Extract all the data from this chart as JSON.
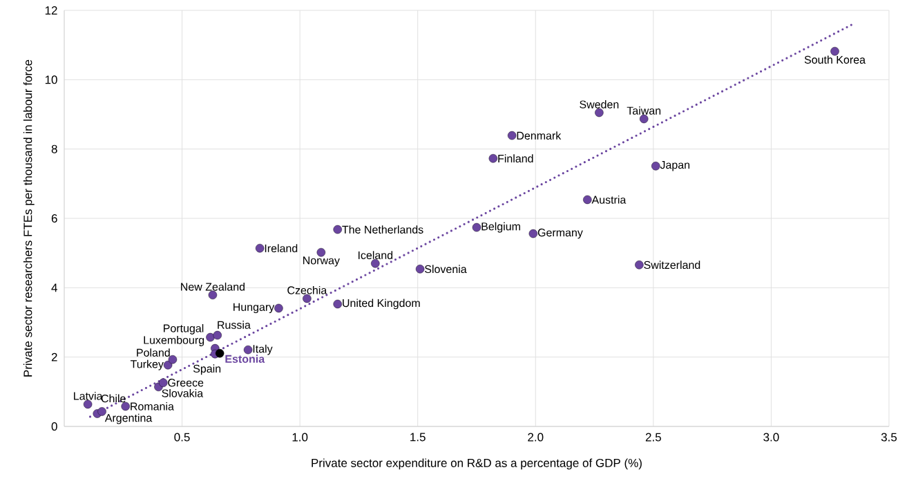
{
  "chart_data": {
    "type": "scatter",
    "xlabel": "Private sector expenditure on R&D as a percentage of GDP (%)",
    "ylabel": "Private sector researchers FTEs per thousand in labour force",
    "xlim": [
      0,
      3.5
    ],
    "ylim": [
      0,
      12
    ],
    "xticks": [
      {
        "value": 0.5,
        "label": "0.5"
      },
      {
        "value": 1,
        "label": "1.0"
      },
      {
        "value": 1.5,
        "label": "1.5"
      },
      {
        "value": 2,
        "label": "2.0"
      },
      {
        "value": 2.5,
        "label": "2.5"
      },
      {
        "value": 3,
        "label": "3.0"
      },
      {
        "value": 3.5,
        "label": "3.5"
      }
    ],
    "yticks": [
      0,
      2,
      4,
      6,
      8,
      10,
      12
    ],
    "grid": true,
    "series": [
      {
        "type": "scatter",
        "marker": "circle",
        "color": "#6b46a0",
        "x": [
          0.1,
          0.14,
          0.16,
          0.26,
          0.4,
          0.42,
          0.44,
          0.46,
          0.62,
          0.65,
          0.64,
          0.64,
          0.66,
          0.78,
          0.91,
          0.63,
          1.03,
          1.16,
          0.83,
          1.09,
          1.16,
          1.32,
          1.51,
          1.75,
          1.99,
          2.22,
          1.82,
          1.9,
          2.27,
          2.46,
          2.51,
          2.44,
          3.27
        ],
        "values": [
          0.64,
          0.37,
          0.43,
          0.58,
          1.14,
          1.26,
          1.77,
          1.93,
          2.57,
          2.63,
          2.25,
          2.09,
          2.11,
          2.21,
          3.41,
          3.79,
          3.69,
          3.53,
          5.14,
          5.02,
          5.68,
          4.7,
          4.54,
          5.74,
          5.56,
          6.54,
          7.73,
          8.39,
          9.05,
          8.87,
          7.51,
          4.66,
          10.82
        ],
        "colors": [
          "#6b46a0",
          "#6b46a0",
          "#6b46a0",
          "#6b46a0",
          "#6b46a0",
          "#6b46a0",
          "#6b46a0",
          "#6b46a0",
          "#6b46a0",
          "#6b46a0",
          "#6b46a0",
          "#6b46a0",
          "#000000",
          "#6b46a0",
          "#6b46a0",
          "#6b46a0",
          "#6b46a0",
          "#6b46a0",
          "#6b46a0",
          "#6b46a0",
          "#6b46a0",
          "#6b46a0",
          "#6b46a0",
          "#6b46a0",
          "#6b46a0",
          "#6b46a0",
          "#6b46a0",
          "#6b46a0",
          "#6b46a0",
          "#6b46a0",
          "#6b46a0",
          "#6b46a0",
          "#6b46a0"
        ]
      },
      {
        "type": "line",
        "line_style": "dotted",
        "marker": "none",
        "color": "#6b46a0",
        "x": [
          0.11,
          3.34
        ],
        "values": [
          0.28,
          11.58
        ]
      }
    ],
    "annotations": [
      {
        "text": "Latvia",
        "x": 0.1,
        "y": 0.64
      },
      {
        "text": "Chile",
        "x": 0.14,
        "y": 0.37
      },
      {
        "text": "Argentina",
        "x": 0.16,
        "y": 0.43
      },
      {
        "text": "Romania",
        "x": 0.26,
        "y": 0.58
      },
      {
        "text": "Slovakia",
        "x": 0.4,
        "y": 1.14
      },
      {
        "text": "Greece",
        "x": 0.42,
        "y": 1.26
      },
      {
        "text": "Turkey",
        "x": 0.44,
        "y": 1.77
      },
      {
        "text": "Poland",
        "x": 0.46,
        "y": 1.93
      },
      {
        "text": "Portugal",
        "x": 0.62,
        "y": 2.57
      },
      {
        "text": "Russia",
        "x": 0.65,
        "y": 2.63
      },
      {
        "text": "Luxembourg",
        "x": 0.64,
        "y": 2.25
      },
      {
        "text": "Spain",
        "x": 0.64,
        "y": 2.09
      },
      {
        "text": "Estonia",
        "x": 0.66,
        "y": 2.11
      },
      {
        "text": "Italy",
        "x": 0.78,
        "y": 2.21
      },
      {
        "text": "Hungary",
        "x": 0.91,
        "y": 3.41
      },
      {
        "text": "New Zealand",
        "x": 0.63,
        "y": 3.79
      },
      {
        "text": "Czechia",
        "x": 1.03,
        "y": 3.69
      },
      {
        "text": "United Kingdom",
        "x": 1.16,
        "y": 3.53
      },
      {
        "text": "Ireland",
        "x": 0.83,
        "y": 5.14
      },
      {
        "text": "Norway",
        "x": 1.09,
        "y": 5.02
      },
      {
        "text": "The Netherlands",
        "x": 1.16,
        "y": 5.68
      },
      {
        "text": "Iceland",
        "x": 1.32,
        "y": 4.7
      },
      {
        "text": "Slovenia",
        "x": 1.51,
        "y": 4.54
      },
      {
        "text": "Belgium",
        "x": 1.75,
        "y": 5.74
      },
      {
        "text": "Germany",
        "x": 1.99,
        "y": 5.56
      },
      {
        "text": "Austria",
        "x": 2.22,
        "y": 6.54
      },
      {
        "text": "Finland",
        "x": 1.82,
        "y": 7.73
      },
      {
        "text": "Denmark",
        "x": 1.9,
        "y": 8.39
      },
      {
        "text": "Sweden",
        "x": 2.27,
        "y": 9.05
      },
      {
        "text": "Taiwan",
        "x": 2.46,
        "y": 8.87
      },
      {
        "text": "Japan",
        "x": 2.51,
        "y": 7.51
      },
      {
        "text": "Switzerland",
        "x": 2.44,
        "y": 4.66
      },
      {
        "text": "South Korea",
        "x": 3.27,
        "y": 10.82
      }
    ]
  }
}
